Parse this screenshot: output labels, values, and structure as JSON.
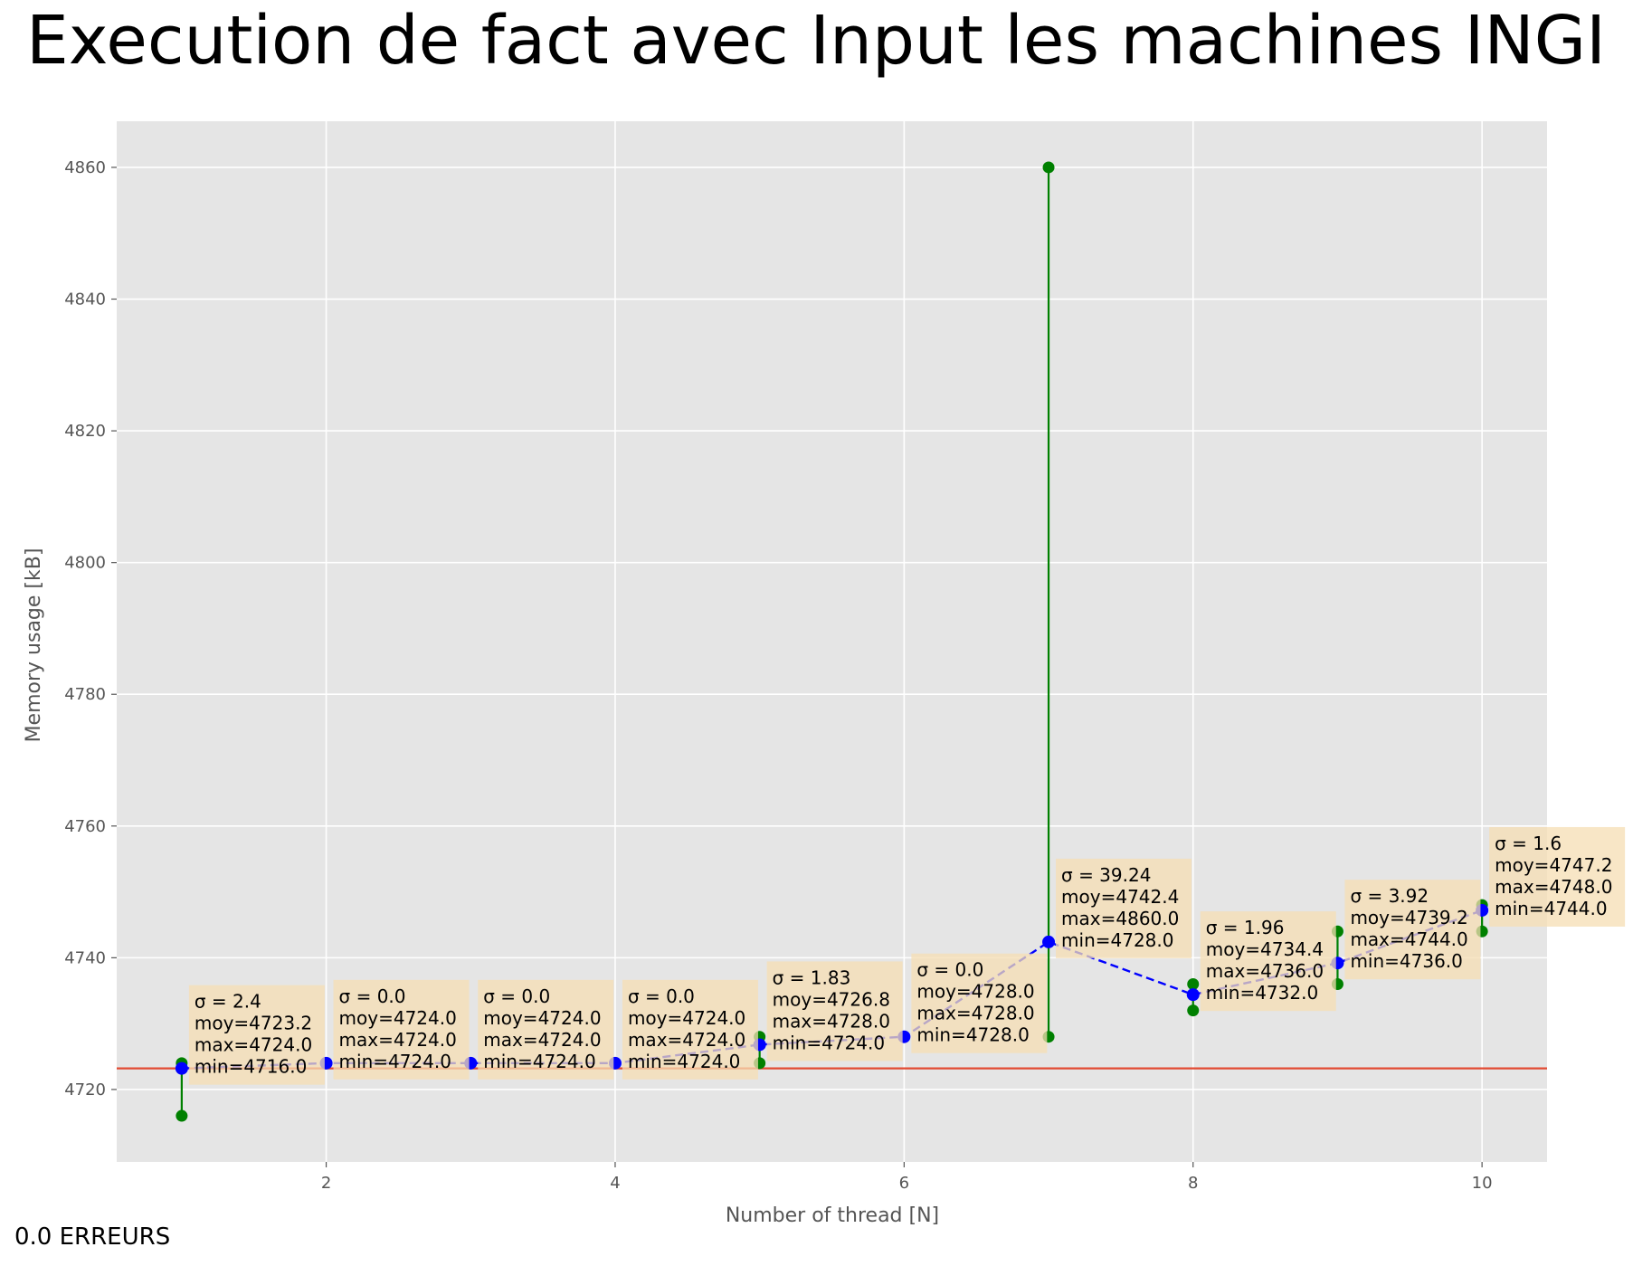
{
  "chart_data": {
    "type": "line",
    "title": "Execution de fact avec Input les machines INGI",
    "xlabel": "Number of thread [N]",
    "ylabel": "Memory usage [kB]",
    "xlim": [
      0.55,
      10.45
    ],
    "ylim": [
      4709,
      4867
    ],
    "xticks": [
      2,
      4,
      6,
      8,
      10
    ],
    "yticks": [
      4720,
      4740,
      4760,
      4780,
      4800,
      4820,
      4840,
      4860
    ],
    "grid": true,
    "background": "#e5e5e5",
    "reference_line": {
      "y": 4723.2,
      "color": "#e24a33"
    },
    "series": [
      {
        "values": [
          {
            "x": 1,
            "mean": 4723.2,
            "max": 4724.0,
            "min": 4716.0,
            "sigma": "2.4",
            "moy": "4723.2",
            "max_label": "4724.0",
            "min_label": "4716.0"
          },
          {
            "x": 2,
            "mean": 4724.0,
            "max": 4724.0,
            "min": 4724.0,
            "sigma": "0.0",
            "moy": "4724.0",
            "max_label": "4724.0",
            "min_label": "4724.0"
          },
          {
            "x": 3,
            "mean": 4724.0,
            "max": 4724.0,
            "min": 4724.0,
            "sigma": "0.0",
            "moy": "4724.0",
            "max_label": "4724.0",
            "min_label": "4724.0"
          },
          {
            "x": 4,
            "mean": 4724.0,
            "max": 4724.0,
            "min": 4724.0,
            "sigma": "0.0",
            "moy": "4724.0",
            "max_label": "4724.0",
            "min_label": "4724.0"
          },
          {
            "x": 5,
            "mean": 4726.8,
            "max": 4728.0,
            "min": 4724.0,
            "sigma": "1.83",
            "moy": "4726.8",
            "max_label": "4728.0",
            "min_label": "4724.0"
          },
          {
            "x": 6,
            "mean": 4728.0,
            "max": 4728.0,
            "min": 4728.0,
            "sigma": "0.0",
            "moy": "4728.0",
            "max_label": "4728.0",
            "min_label": "4728.0"
          },
          {
            "x": 7,
            "mean": 4742.4,
            "max": 4860.0,
            "min": 4728.0,
            "sigma": "39.24",
            "moy": "4742.4",
            "max_label": "4860.0",
            "min_label": "4728.0"
          },
          {
            "x": 8,
            "mean": 4734.4,
            "max": 4736.0,
            "min": 4732.0,
            "sigma": "1.96",
            "moy": "4734.4",
            "max_label": "4736.0",
            "min_label": "4732.0"
          },
          {
            "x": 9,
            "mean": 4739.2,
            "max": 4744.0,
            "min": 4736.0,
            "sigma": "3.92",
            "moy": "4739.2",
            "max_label": "4744.0",
            "min_label": "4736.0"
          },
          {
            "x": 10,
            "mean": 4747.2,
            "max": 4748.0,
            "min": 4744.0,
            "sigma": "1.6",
            "moy": "4747.2",
            "max_label": "4748.0",
            "min_label": "4744.0"
          }
        ]
      }
    ],
    "colors": {
      "mean": "#0000ff",
      "range": "#008000",
      "annotation_bg": "#f5deb3",
      "grid": "#ffffff"
    }
  },
  "footer": {
    "errors": "0.0 ERREURS"
  }
}
